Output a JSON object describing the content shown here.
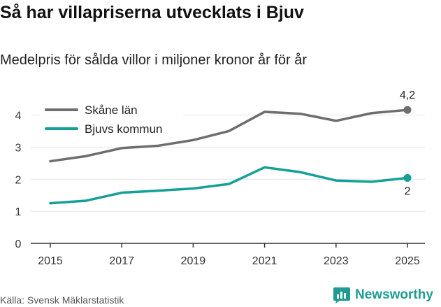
{
  "title": "Så har villapriserna utvecklats i Bjuv",
  "subtitle": "Medelpris för sålda villor i miljoner kronor år för år",
  "source": "Källa: Svensk Mäklarstatistik",
  "brand": "Newsworthy",
  "colors": {
    "skane": "#6e6e6e",
    "bjuv": "#14a096",
    "grid": "#e3e3e3",
    "axis": "#333333",
    "brand": "#1e9c92"
  },
  "chart_data": {
    "type": "line",
    "x": [
      2015,
      2016,
      2017,
      2018,
      2019,
      2020,
      2021,
      2022,
      2023,
      2024,
      2025
    ],
    "series": [
      {
        "name": "Skåne län",
        "values": [
          2.56,
          2.72,
          2.97,
          3.04,
          3.22,
          3.5,
          4.1,
          4.04,
          3.82,
          4.06,
          4.16
        ],
        "end_label": "4,2"
      },
      {
        "name": "Bjuvs kommun",
        "values": [
          1.25,
          1.33,
          1.58,
          1.64,
          1.71,
          1.85,
          2.37,
          2.22,
          1.96,
          1.92,
          2.04
        ],
        "end_label": "2"
      }
    ],
    "xticks": [
      "2015",
      "2017",
      "2019",
      "2021",
      "2023",
      "2025"
    ],
    "yticks": [
      "0",
      "1",
      "2",
      "3",
      "4"
    ],
    "ylim": [
      0,
      4.6
    ],
    "xlim": [
      2015,
      2025
    ],
    "xlabel": "",
    "ylabel": "",
    "legend": "top-left"
  }
}
